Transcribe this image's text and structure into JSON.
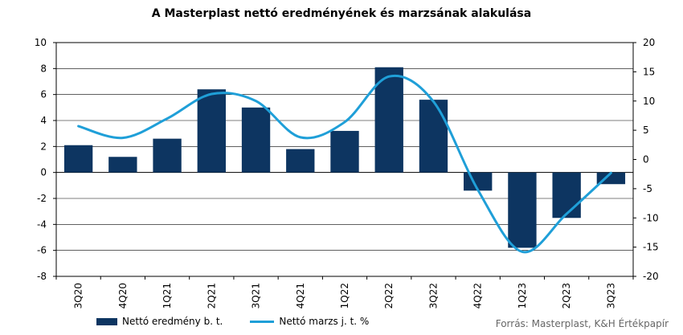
{
  "colors": {
    "bar": "#0d3561",
    "line": "#1f9fd8",
    "axis": "#000000",
    "grid": "#000000"
  },
  "chart_data": {
    "type": "bar",
    "title": "A Masterplast nettó eredményének és marzsának alakulása",
    "categories": [
      "3Q20",
      "4Q20",
      "1Q21",
      "2Q21",
      "3Q21",
      "4Q21",
      "1Q22",
      "2Q22",
      "3Q22",
      "4Q22",
      "1Q23",
      "2Q23",
      "3Q23"
    ],
    "series": [
      {
        "name": "Nettó eredmény b. t.",
        "type": "bar",
        "axis": "left",
        "values": [
          2.1,
          1.2,
          2.6,
          6.4,
          5.0,
          1.8,
          3.2,
          8.1,
          5.6,
          -1.4,
          -5.8,
          -3.5,
          -0.9
        ]
      },
      {
        "name": "Nettó marzs j. t. %",
        "type": "line",
        "axis": "right",
        "smooth": true,
        "values": [
          5.7,
          3.7,
          7.0,
          11.2,
          10.0,
          3.8,
          6.4,
          14.2,
          9.9,
          -5.2,
          -15.8,
          -9.3,
          -2.3
        ]
      }
    ],
    "ylim_left": [
      -8,
      10
    ],
    "ylim_right": [
      -20,
      20
    ],
    "yticks_left": [
      -8,
      -6,
      -4,
      -2,
      0,
      2,
      4,
      6,
      8,
      10
    ],
    "yticks_right": [
      -20,
      -15,
      -10,
      -5,
      0,
      5,
      10,
      15,
      20
    ],
    "legend_position": "bottom-left",
    "source": "Forrás: Masterplast, K&H Értékpapír"
  }
}
